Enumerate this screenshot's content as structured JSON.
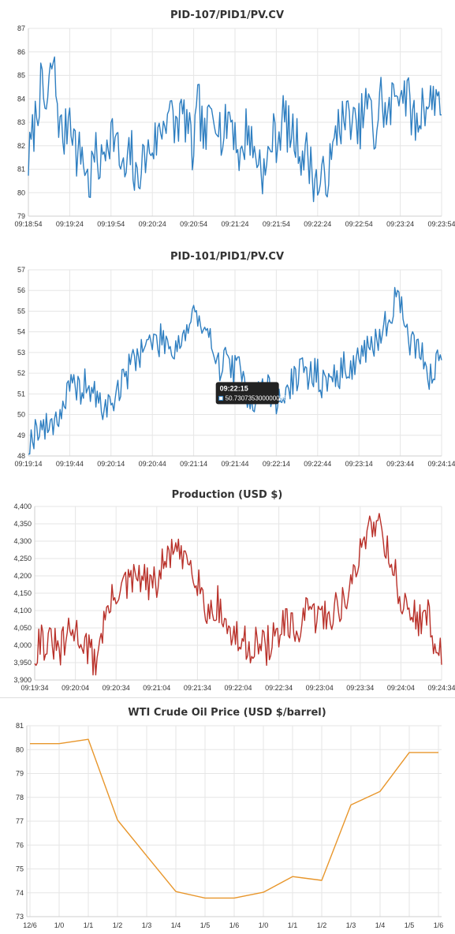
{
  "charts": [
    {
      "type": "line",
      "title": "PID-107/PID1/PV.CV",
      "color": "#2f7fc1",
      "ylim": [
        79,
        87
      ],
      "yticks": [
        79,
        80,
        81,
        82,
        83,
        84,
        85,
        86,
        87
      ],
      "x_range": [
        "09:18:54",
        "09:23:54"
      ],
      "xticks": [
        "09:18:54",
        "09:19:24",
        "09:19:54",
        "09:20:24",
        "09:20:54",
        "09:21:24",
        "09:21:54",
        "09:22:24",
        "09:22:54",
        "09:23:24",
        "09:23:54"
      ],
      "anchors": [
        [
          0,
          81.3
        ],
        [
          1,
          84.5
        ],
        [
          1.5,
          83.4
        ],
        [
          2,
          85.8
        ],
        [
          2.6,
          82.7
        ],
        [
          3,
          82.3
        ],
        [
          3.4,
          83.7
        ],
        [
          4,
          81.5
        ],
        [
          4.4,
          81.8
        ],
        [
          5,
          80.2
        ],
        [
          5.4,
          81.6
        ],
        [
          6,
          81.1
        ],
        [
          6.5,
          82.5
        ],
        [
          7,
          82.6
        ],
        [
          7.5,
          81.4
        ],
        [
          7.9,
          80.6
        ],
        [
          8.5,
          81.8
        ],
        [
          8.8,
          80.2
        ],
        [
          9.2,
          81.2
        ],
        [
          9.8,
          81.6
        ],
        [
          10,
          81.9
        ],
        [
          10.5,
          82.2
        ],
        [
          11,
          82.8
        ],
        [
          11.5,
          83.7
        ],
        [
          12,
          82.7
        ],
        [
          12.5,
          83.3
        ],
        [
          13,
          83.1
        ],
        [
          13.5,
          81.6
        ],
        [
          14,
          83.8
        ],
        [
          14.5,
          82.1
        ],
        [
          15,
          83.4
        ],
        [
          15.5,
          83.6
        ],
        [
          16,
          82.1
        ],
        [
          16.5,
          83.5
        ],
        [
          17,
          82.6
        ],
        [
          17.5,
          81.2
        ],
        [
          18,
          83.0
        ],
        [
          18.5,
          81.7
        ],
        [
          19,
          81.5
        ],
        [
          19.5,
          80.6
        ],
        [
          20,
          82.4
        ],
        [
          20.5,
          82.3
        ],
        [
          21,
          83.3
        ],
        [
          21.5,
          82.5
        ],
        [
          22,
          82.3
        ],
        [
          22.5,
          81.7
        ],
        [
          23,
          81.6
        ],
        [
          23.5,
          80.6
        ],
        [
          24,
          80.2
        ],
        [
          24.5,
          80.8
        ],
        [
          25,
          81.3
        ],
        [
          25.5,
          83.2
        ],
        [
          26,
          82.9
        ],
        [
          26.5,
          83.4
        ],
        [
          27,
          82.4
        ],
        [
          27.5,
          83.3
        ],
        [
          28,
          83.9
        ],
        [
          28.5,
          82.2
        ],
        [
          29,
          84.2
        ],
        [
          29.5,
          83.0
        ],
        [
          30,
          84.0
        ],
        [
          30.5,
          84.6
        ],
        [
          31,
          84.3
        ],
        [
          31.5,
          83.5
        ],
        [
          32,
          82.7
        ],
        [
          32.5,
          84.0
        ],
        [
          33,
          83.7
        ],
        [
          33.5,
          84.3
        ],
        [
          34,
          83.9
        ]
      ],
      "noise": 1.1,
      "seed": 7
    },
    {
      "type": "line",
      "title": "PID-101/PID1/PV.CV",
      "color": "#2f7fc1",
      "ylim": [
        48,
        57
      ],
      "yticks": [
        48,
        49,
        50,
        51,
        52,
        53,
        54,
        55,
        56,
        57
      ],
      "x_range": [
        "09:19:14",
        "09:24:14"
      ],
      "xticks": [
        "09:19:14",
        "09:19:44",
        "09:20:14",
        "09:20:44",
        "09:21:14",
        "09:21:44",
        "09:22:14",
        "09:22:44",
        "09:23:14",
        "09:23:44",
        "09:24:14"
      ],
      "anchors": [
        [
          0,
          48.4
        ],
        [
          0.7,
          49.5
        ],
        [
          1.4,
          49.3
        ],
        [
          2,
          49.8
        ],
        [
          2.5,
          50.1
        ],
        [
          3,
          51.0
        ],
        [
          3.5,
          51.3
        ],
        [
          4,
          51.2
        ],
        [
          4.5,
          51.5
        ],
        [
          5,
          51.0
        ],
        [
          5.5,
          50.5
        ],
        [
          6,
          50.3
        ],
        [
          6.5,
          50.6
        ],
        [
          7,
          51.3
        ],
        [
          7.5,
          51.7
        ],
        [
          8,
          52.6
        ],
        [
          8.5,
          53.0
        ],
        [
          9,
          53.3
        ],
        [
          9.5,
          53.6
        ],
        [
          10,
          53.4
        ],
        [
          10.5,
          53.8
        ],
        [
          11,
          53.2
        ],
        [
          11.5,
          53.4
        ],
        [
          12,
          53.9
        ],
        [
          12.5,
          54.3
        ],
        [
          12.9,
          55.3
        ],
        [
          13.3,
          54.0
        ],
        [
          13.8,
          53.6
        ],
        [
          14.4,
          53.4
        ],
        [
          15,
          52.0
        ],
        [
          15.4,
          53.2
        ],
        [
          15.8,
          52.1
        ],
        [
          16.3,
          52.2
        ],
        [
          17,
          51.0
        ],
        [
          17.5,
          50.7
        ],
        [
          18,
          51.2
        ],
        [
          18.5,
          51.3
        ],
        [
          19,
          50.8
        ],
        [
          19.4,
          50.5
        ],
        [
          19.8,
          51.0
        ],
        [
          20.3,
          51.4
        ],
        [
          21,
          52.1
        ],
        [
          21.5,
          51.8
        ],
        [
          22,
          52.1
        ],
        [
          22.5,
          51.9
        ],
        [
          23,
          51.2
        ],
        [
          23.5,
          52.1
        ],
        [
          24,
          51.6
        ],
        [
          24.5,
          52.5
        ],
        [
          25,
          52.2
        ],
        [
          25.5,
          52.7
        ],
        [
          26,
          53.1
        ],
        [
          26.5,
          52.9
        ],
        [
          27,
          53.7
        ],
        [
          27.5,
          54.2
        ],
        [
          28,
          54.6
        ],
        [
          28.4,
          55.9
        ],
        [
          28.9,
          55.2
        ],
        [
          29.3,
          54.1
        ],
        [
          29.8,
          53.2
        ],
        [
          30.3,
          53.4
        ],
        [
          30.8,
          52.6
        ],
        [
          31.1,
          51.6
        ],
        [
          31.5,
          52.1
        ],
        [
          31.9,
          52.8
        ],
        [
          32,
          53.0
        ]
      ],
      "noise": 0.8,
      "seed": 19,
      "tooltip": {
        "time": "09:22:15",
        "value": "50.730735300000006",
        "at": 19.4
      }
    },
    {
      "type": "line",
      "title": "Production (USD $)",
      "color": "#b9312a",
      "ylim": [
        3900,
        4400
      ],
      "yticks": [
        3900,
        3950,
        4000,
        4050,
        4100,
        4150,
        4200,
        4250,
        4300,
        4350,
        4400
      ],
      "ytick_labels": [
        "3,900",
        "3,950",
        "4,000",
        "4,050",
        "4,100",
        "4,150",
        "4,200",
        "4,250",
        "4,300",
        "4,350",
        "4,400"
      ],
      "x_range": [
        "09:19:34",
        "09:24:34"
      ],
      "xticks": [
        "09:19:34",
        "09:20:04",
        "09:20:34",
        "09:21:04",
        "09:21:34",
        "09:22:04",
        "09:22:34",
        "09:23:04",
        "09:23:34",
        "09:24:04",
        "09:24:34"
      ],
      "anchors": [
        [
          0,
          3975
        ],
        [
          0.5,
          4030
        ],
        [
          1,
          3990
        ],
        [
          1.5,
          4010
        ],
        [
          2,
          3975
        ],
        [
          2.5,
          4010
        ],
        [
          3,
          4040
        ],
        [
          3.5,
          4035
        ],
        [
          4,
          4015
        ],
        [
          4.5,
          3980
        ],
        [
          5,
          3950
        ],
        [
          5.5,
          4040
        ],
        [
          6,
          4100
        ],
        [
          6.5,
          4130
        ],
        [
          7,
          4180
        ],
        [
          7.5,
          4165
        ],
        [
          8,
          4180
        ],
        [
          8.5,
          4200
        ],
        [
          9,
          4185
        ],
        [
          9.5,
          4170
        ],
        [
          10,
          4175
        ],
        [
          10.5,
          4225
        ],
        [
          11,
          4250
        ],
        [
          11.5,
          4290
        ],
        [
          12,
          4235
        ],
        [
          12.5,
          4260
        ],
        [
          13,
          4230
        ],
        [
          13.5,
          4190
        ],
        [
          14,
          4110
        ],
        [
          14.5,
          4095
        ],
        [
          15,
          4125
        ],
        [
          15.5,
          4080
        ],
        [
          16,
          4040
        ],
        [
          16.5,
          4020
        ],
        [
          17,
          4010
        ],
        [
          17.5,
          3995
        ],
        [
          18,
          4010
        ],
        [
          18.5,
          4000
        ],
        [
          19,
          3990
        ],
        [
          19.5,
          4020
        ],
        [
          20,
          4020
        ],
        [
          20.5,
          4060
        ],
        [
          21,
          4045
        ],
        [
          21.5,
          4030
        ],
        [
          22,
          4070
        ],
        [
          22.5,
          4090
        ],
        [
          23,
          4080
        ],
        [
          23.5,
          4090
        ],
        [
          24,
          4080
        ],
        [
          24.5,
          4100
        ],
        [
          25,
          4110
        ],
        [
          25.5,
          4130
        ],
        [
          26,
          4170
        ],
        [
          26.5,
          4210
        ],
        [
          27,
          4300
        ],
        [
          27.5,
          4345
        ],
        [
          28,
          4360
        ],
        [
          28.5,
          4350
        ],
        [
          29,
          4280
        ],
        [
          29.5,
          4230
        ],
        [
          30,
          4150
        ],
        [
          30.5,
          4100
        ],
        [
          31,
          4090
        ],
        [
          31.5,
          4085
        ],
        [
          32,
          4070
        ],
        [
          32.5,
          4080
        ],
        [
          33,
          4000
        ],
        [
          33.5,
          3965
        ]
      ],
      "noise": 55,
      "seed": 31
    },
    {
      "type": "line",
      "title": "WTI Crude Oil Price (USD $/barrel)",
      "color": "#e8962b",
      "ylim": [
        73,
        81
      ],
      "yticks": [
        73,
        74,
        75,
        76,
        77,
        78,
        79,
        80,
        81
      ],
      "categories": [
        "12/6",
        "1/0",
        "1/1",
        "1/2",
        "1/3",
        "1/4",
        "1/5",
        "1/6",
        "1/0",
        "1/1",
        "1/2",
        "1/3",
        "1/4",
        "1/5",
        "1/6"
      ],
      "values": [
        80.25,
        80.25,
        80.43,
        77.05,
        75.55,
        74.05,
        73.78,
        73.78,
        74.02,
        74.68,
        74.52,
        77.68,
        78.25,
        79.88,
        79.88
      ]
    }
  ]
}
